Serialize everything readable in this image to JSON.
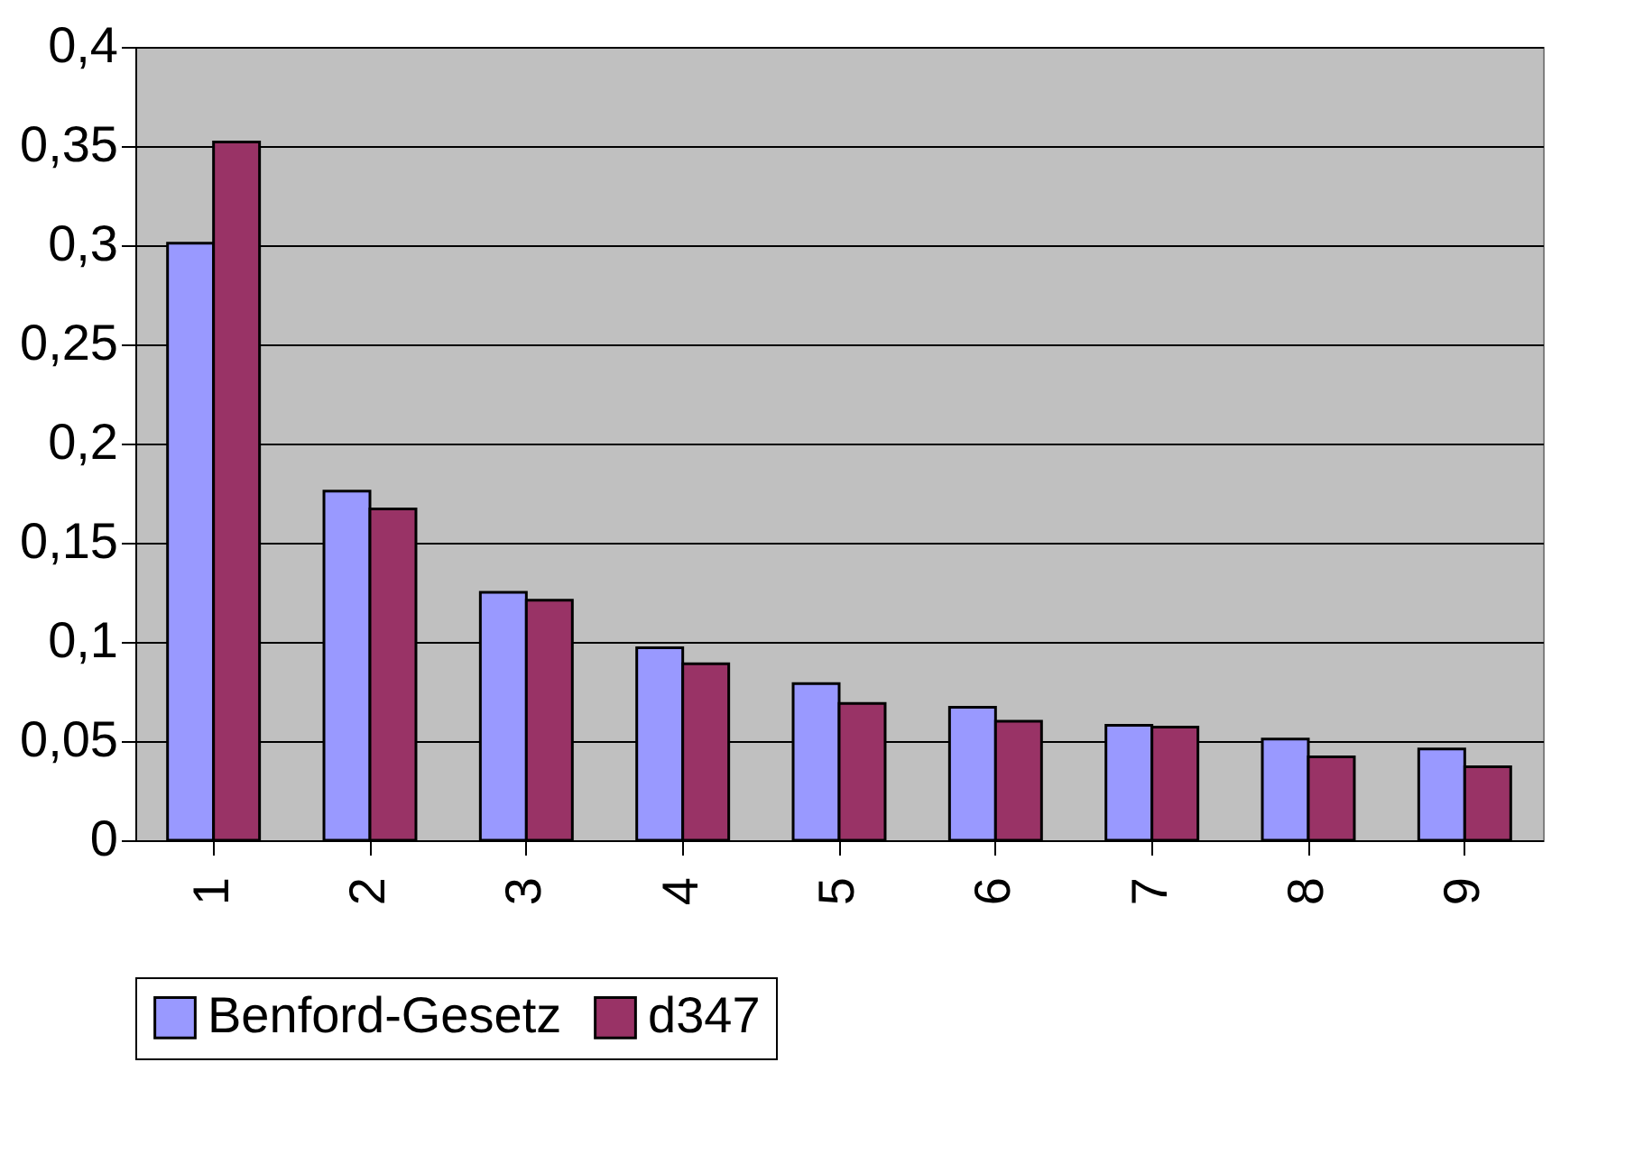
{
  "chart_data": {
    "type": "bar",
    "categories": [
      "1",
      "2",
      "3",
      "4",
      "5",
      "6",
      "7",
      "8",
      "9"
    ],
    "series": [
      {
        "name": "Benford-Gesetz",
        "color": "#9999ff",
        "values": [
          0.301,
          0.176,
          0.125,
          0.097,
          0.079,
          0.067,
          0.058,
          0.051,
          0.046
        ]
      },
      {
        "name": "d347",
        "color": "#993366",
        "values": [
          0.352,
          0.167,
          0.121,
          0.089,
          0.069,
          0.06,
          0.057,
          0.042,
          0.037
        ]
      }
    ],
    "ylim": [
      0,
      0.4
    ],
    "yticks": [
      {
        "value": 0,
        "label": "0"
      },
      {
        "value": 0.05,
        "label": "0,05"
      },
      {
        "value": 0.1,
        "label": "0,1"
      },
      {
        "value": 0.15,
        "label": "0,15"
      },
      {
        "value": 0.2,
        "label": "0,2"
      },
      {
        "value": 0.25,
        "label": "0,25"
      },
      {
        "value": 0.3,
        "label": "0,3"
      },
      {
        "value": 0.35,
        "label": "0,35"
      },
      {
        "value": 0.4,
        "label": "0,4"
      }
    ],
    "grid": "y",
    "legend": "bottom"
  }
}
